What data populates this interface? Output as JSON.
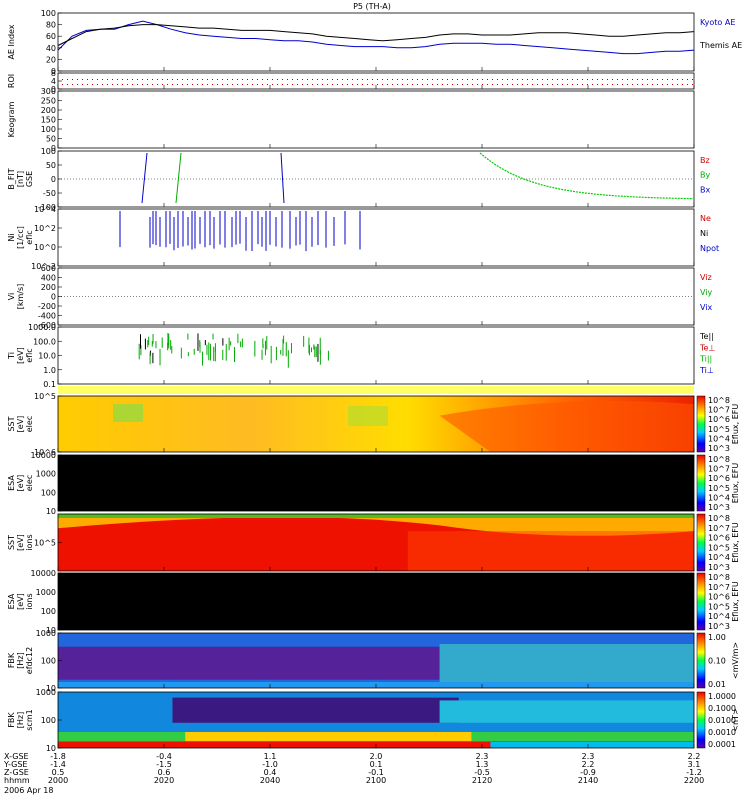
{
  "chart_data": {
    "type": "multi-panel",
    "title": "P5 (TH-A)",
    "date_label": "2006 Apr 18",
    "x_axis": {
      "rows": [
        "X-GSE",
        "Y-GSE",
        "Z-GSE",
        "hhmm"
      ],
      "ticks": [
        {
          "hhmm": "2000",
          "x": "-1.8",
          "y": "-1.4",
          "z": "0.5"
        },
        {
          "hhmm": "2020",
          "x": "-0.4",
          "y": "-1.5",
          "z": "0.6"
        },
        {
          "hhmm": "2040",
          "x": "1.1",
          "y": "-1.0",
          "z": "0.4"
        },
        {
          "hhmm": "2100",
          "x": "2.0",
          "y": "0.1",
          "z": "-0.1"
        },
        {
          "hhmm": "2120",
          "x": "2.3",
          "y": "1.3",
          "z": "-0.5"
        },
        {
          "hhmm": "2140",
          "x": "2.3",
          "y": "2.2",
          "z": "-0.9"
        },
        {
          "hhmm": "2200",
          "x": "2.2",
          "y": "3.1",
          "z": "-1.2"
        }
      ]
    },
    "panels": [
      {
        "id": "ae",
        "ylabel": "AE Index",
        "yticks": [
          "100",
          "80",
          "60",
          "40",
          "20",
          "0"
        ],
        "legend": [
          {
            "name": "Kyoto AE",
            "color": "#0000cc"
          },
          {
            "name": "Themis AE",
            "color": "#000000"
          }
        ],
        "series": [
          {
            "name": "Kyoto AE",
            "color": "#0000cc",
            "values": [
              36,
              60,
              70,
              72,
              72,
              80,
              86,
              80,
              72,
              66,
              62,
              60,
              58,
              56,
              56,
              54,
              52,
              52,
              50,
              46,
              44,
              42,
              42,
              42,
              40,
              40,
              42,
              46,
              48,
              48,
              48,
              46,
              46,
              44,
              42,
              40,
              38,
              36,
              34,
              32,
              30,
              30,
              32,
              34,
              34,
              36
            ]
          },
          {
            "name": "Themis AE",
            "color": "#000000",
            "values": [
              44,
              56,
              68,
              72,
              74,
              78,
              80,
              80,
              78,
              76,
              74,
              74,
              72,
              70,
              70,
              70,
              68,
              66,
              64,
              60,
              58,
              56,
              54,
              52,
              54,
              56,
              58,
              62,
              64,
              64,
              62,
              62,
              62,
              64,
              66,
              66,
              66,
              64,
              62,
              60,
              60,
              62,
              64,
              66,
              66,
              68
            ]
          }
        ]
      },
      {
        "id": "roi",
        "ylabel": "ROI",
        "yticks": [
          "8",
          "4",
          "0"
        ]
      },
      {
        "id": "keogram",
        "ylabel": "Keogram",
        "yticks": [
          "300",
          "250",
          "200",
          "150",
          "100",
          "50",
          "0"
        ]
      },
      {
        "id": "bfit",
        "ylabel": "B_FIT\n[nT]",
        "unit": "GSE",
        "yticks": [
          "100",
          "50",
          "0",
          "-50",
          "-100"
        ],
        "legend": [
          {
            "name": "Bz",
            "color": "#cc0000"
          },
          {
            "name": "By",
            "color": "#00aa00"
          },
          {
            "name": "Bx",
            "color": "#0000cc"
          }
        ]
      },
      {
        "id": "ni",
        "ylabel": "Ni\n[1/cc]",
        "unit": "eflc",
        "yticks": [
          "10^4",
          "10^2",
          "10^0",
          "10^-2"
        ],
        "legend": [
          {
            "name": "Ne",
            "color": "#cc0000"
          },
          {
            "name": "Ni",
            "color": "#000000"
          },
          {
            "name": "Npot",
            "color": "#0000cc"
          }
        ]
      },
      {
        "id": "vi",
        "ylabel": "Vi\n[km/s]",
        "yticks": [
          "600",
          "400",
          "200",
          "0",
          "-200",
          "-400",
          "-600"
        ],
        "legend": [
          {
            "name": "Viz",
            "color": "#cc0000"
          },
          {
            "name": "Viy",
            "color": "#00aa00"
          },
          {
            "name": "Vix",
            "color": "#0000cc"
          }
        ]
      },
      {
        "id": "ti",
        "ylabel": "Ti\n[eV]",
        "unit": "eflc",
        "yticks": [
          "1000.0",
          "100.0",
          "10.0",
          "1.0",
          "0.1"
        ],
        "legend": [
          {
            "name": "Te||",
            "color": "#000000"
          },
          {
            "name": "Te⊥",
            "color": "#cc0000"
          },
          {
            "name": "Ti||",
            "color": "#00aa00"
          },
          {
            "name": "Ti⊥",
            "color": "#0000cc"
          }
        ]
      },
      {
        "id": "sst_e",
        "ylabel": "SST\n[eV]",
        "unit": "elec",
        "yticks": [
          "10^5",
          "10^6"
        ]
      },
      {
        "id": "esa_e",
        "ylabel": "ESA\n[eV]",
        "unit": "elec",
        "yticks": [
          "10000",
          "1000",
          "100",
          "10"
        ]
      },
      {
        "id": "sst_i",
        "ylabel": "SST\n[eV]",
        "unit": "ions",
        "yticks": [
          "10^5"
        ]
      },
      {
        "id": "esa_i",
        "ylabel": "ESA\n[eV]",
        "unit": "ions",
        "yticks": [
          "10000",
          "1000",
          "100",
          "10"
        ]
      },
      {
        "id": "fbk_b",
        "ylabel": "FBK\n[Hz]",
        "unit": "efdc12",
        "yticks": [
          "1000",
          "100",
          "10"
        ]
      },
      {
        "id": "fbk_e",
        "ylabel": "FBK\n[Hz]",
        "unit": "scm1",
        "yticks": [
          "1000",
          "100",
          "10"
        ]
      }
    ],
    "colorbars": [
      {
        "label": "Eflux, EFU",
        "ticks": [
          "10^8",
          "10^7",
          "10^6",
          "10^5",
          "10^4",
          "10^3"
        ]
      },
      {
        "label": "Eflux, EFU",
        "ticks": [
          "10^8",
          "10^7",
          "10^6",
          "10^5",
          "10^4",
          "10^3"
        ]
      },
      {
        "label": "Eflux, EFU",
        "ticks": [
          "10^8",
          "10^7",
          "10^6",
          "10^5",
          "10^4",
          "10^3"
        ]
      },
      {
        "label": "Eflux, EFU",
        "ticks": [
          "10^8",
          "10^7",
          "10^6",
          "10^5",
          "10^4",
          "10^3"
        ]
      },
      {
        "label": "<mV/m>",
        "ticks": [
          "1.00",
          "0.10",
          "0.01"
        ]
      },
      {
        "label": "<nT>",
        "ticks": [
          "1.0000",
          "0.1000",
          "0.0100",
          "0.0010",
          "0.0001"
        ]
      }
    ]
  }
}
